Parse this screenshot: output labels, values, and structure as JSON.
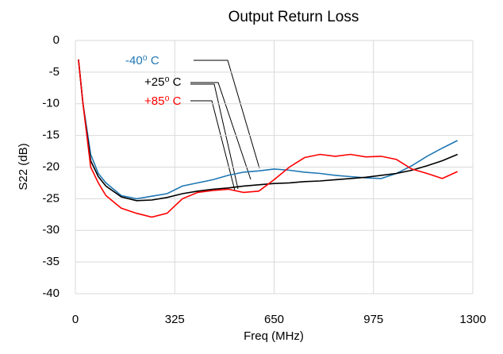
{
  "chart_data": {
    "type": "line",
    "title": "Output Return Loss",
    "x_label": "Freq (MHz)",
    "y_label": "S22 (dB)",
    "x": [
      10,
      25,
      50,
      75,
      100,
      150,
      200,
      250,
      300,
      350,
      400,
      450,
      500,
      550,
      600,
      650,
      700,
      750,
      800,
      850,
      900,
      950,
      1000,
      1050,
      1100,
      1150,
      1200,
      1250
    ],
    "series": [
      {
        "name": "-40⁰ C",
        "color": "#1f77b4",
        "values": [
          -3,
          -10,
          -18,
          -21,
          -22.5,
          -24.5,
          -25,
          -24.6,
          -24.2,
          -23,
          -22.5,
          -22,
          -21.3,
          -20.8,
          -20.6,
          -20.3,
          -20.5,
          -20.8,
          -21,
          -21.3,
          -21.5,
          -21.7,
          -21.8,
          -21,
          -19.8,
          -18.3,
          -17,
          -15.8
        ]
      },
      {
        "name": "+25⁰ C",
        "color": "#000000",
        "values": [
          -3,
          -10,
          -19,
          -21.5,
          -23,
          -24.7,
          -25.3,
          -25.2,
          -24.8,
          -24.2,
          -23.8,
          -23.5,
          -23.3,
          -23,
          -22.8,
          -22.6,
          -22.5,
          -22.3,
          -22.2,
          -22,
          -21.8,
          -21.6,
          -21.3,
          -21,
          -20.5,
          -19.8,
          -19,
          -18
        ]
      },
      {
        "name": "+85⁰ C",
        "color": "#ff0000",
        "values": [
          -3,
          -10,
          -20,
          -22.5,
          -24.5,
          -26.5,
          -27.3,
          -27.9,
          -27.3,
          -25,
          -24,
          -23.7,
          -23.5,
          -24,
          -23.8,
          -22,
          -20,
          -18.5,
          -18,
          -18.3,
          -18,
          -18.4,
          -18.3,
          -18.8,
          -20.3,
          -21,
          -21.8,
          -20.7
        ]
      }
    ],
    "xlim": [
      0,
      1300
    ],
    "xticks": [
      0,
      325,
      650,
      975,
      1300
    ],
    "ylim": [
      -40,
      0
    ],
    "yticks": [
      0,
      -5,
      -10,
      -15,
      -20,
      -25,
      -30,
      -35,
      -40
    ],
    "grid": true
  }
}
